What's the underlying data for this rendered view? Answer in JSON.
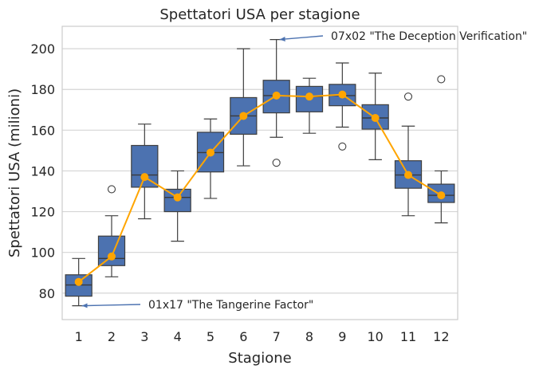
{
  "chart_data": {
    "type": "box",
    "title": "Spettatori USA per stagione",
    "xlabel": "Stagione",
    "ylabel": "Spettatori USA (milioni)",
    "categories": [
      "1",
      "2",
      "3",
      "4",
      "5",
      "6",
      "7",
      "8",
      "9",
      "10",
      "11",
      "12"
    ],
    "ylim": [
      67,
      211
    ],
    "yticks": [
      80,
      100,
      120,
      140,
      160,
      180,
      200
    ],
    "grid": "horizontal",
    "colors": {
      "box": "#4c72b0",
      "median": "#3a3a3a",
      "mean_line": "#ffa500",
      "arrow": "#4c72b0"
    },
    "boxes": [
      {
        "season": "1",
        "whisker_low": 73.8,
        "q1": 78.5,
        "median": 84.0,
        "q3": 89.0,
        "whisker_high": 97.0,
        "outliers": []
      },
      {
        "season": "2",
        "whisker_low": 88.0,
        "q1": 93.5,
        "median": 97.0,
        "q3": 108.0,
        "whisker_high": 118.0,
        "outliers": [
          131.0
        ]
      },
      {
        "season": "3",
        "whisker_low": 116.5,
        "q1": 132.0,
        "median": 138.0,
        "q3": 152.5,
        "whisker_high": 163.0,
        "outliers": []
      },
      {
        "season": "4",
        "whisker_low": 105.5,
        "q1": 120.0,
        "median": 127.0,
        "q3": 131.0,
        "whisker_high": 140.0,
        "outliers": []
      },
      {
        "season": "5",
        "whisker_low": 126.5,
        "q1": 139.5,
        "median": 149.0,
        "q3": 159.0,
        "whisker_high": 165.5,
        "outliers": []
      },
      {
        "season": "6",
        "whisker_low": 142.5,
        "q1": 158.0,
        "median": 167.0,
        "q3": 176.0,
        "whisker_high": 200.0,
        "outliers": []
      },
      {
        "season": "7",
        "whisker_low": 156.5,
        "q1": 168.5,
        "median": 177.0,
        "q3": 184.5,
        "whisker_high": 204.5,
        "outliers": [
          144.0
        ]
      },
      {
        "season": "8",
        "whisker_low": 158.5,
        "q1": 169.0,
        "median": 176.5,
        "q3": 181.5,
        "whisker_high": 185.5,
        "outliers": []
      },
      {
        "season": "9",
        "whisker_low": 161.5,
        "q1": 172.0,
        "median": 177.0,
        "q3": 182.5,
        "whisker_high": 193.0,
        "outliers": [
          152.0
        ]
      },
      {
        "season": "10",
        "whisker_low": 145.5,
        "q1": 160.5,
        "median": 166.0,
        "q3": 172.5,
        "whisker_high": 188.0,
        "outliers": []
      },
      {
        "season": "11",
        "whisker_low": 118.0,
        "q1": 131.5,
        "median": 138.0,
        "q3": 145.0,
        "whisker_high": 162.0,
        "outliers": [
          176.5
        ]
      },
      {
        "season": "12",
        "whisker_low": 114.5,
        "q1": 124.5,
        "median": 128.0,
        "q3": 133.5,
        "whisker_high": 140.0,
        "outliers": [
          185.0
        ]
      }
    ],
    "means": [
      85.5,
      98.0,
      137.0,
      127.0,
      149.0,
      167.0,
      177.0,
      176.5,
      177.5,
      166.0,
      138.0,
      128.0
    ],
    "annotations": [
      {
        "text": "07x02 \"The Deception Verification\"",
        "point": {
          "x": "7",
          "y": 204.5
        }
      },
      {
        "text": "01x17 \"The Tangerine Factor\"",
        "point": {
          "x": "1",
          "y": 73.8
        }
      }
    ]
  }
}
